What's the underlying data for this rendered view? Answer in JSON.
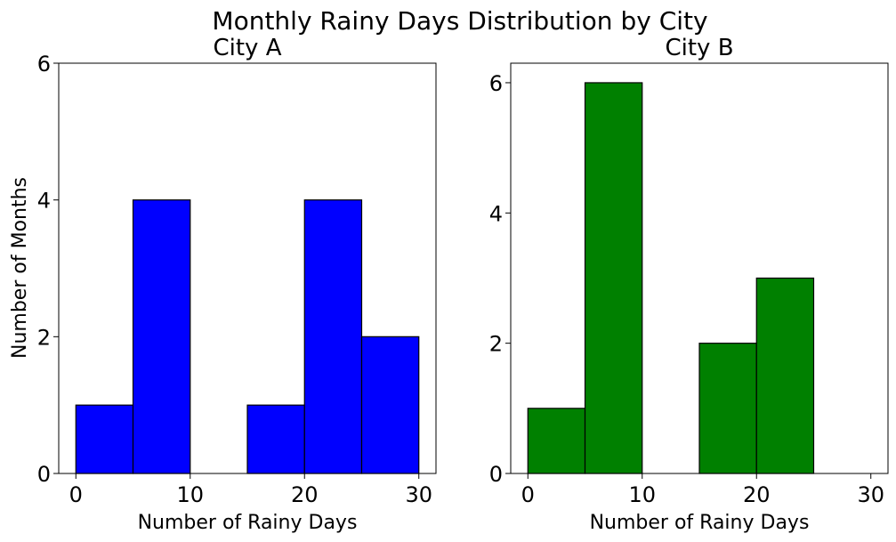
{
  "figure": {
    "title": "Monthly Rainy Days Distribution by City"
  },
  "chart_data": [
    {
      "type": "bar",
      "title": "City A",
      "xlabel": "Number of Rainy Days",
      "ylabel": "Number of Months",
      "bin_edges": [
        0,
        5,
        10,
        15,
        20,
        25,
        30
      ],
      "values": [
        1,
        4,
        0,
        1,
        4,
        2
      ],
      "bar_color": "#0000ff",
      "edge_color": "#000000",
      "xlim": [
        -1.5,
        31.5
      ],
      "ylim": [
        0,
        6
      ],
      "xticks": [
        0,
        10,
        20,
        30
      ],
      "yticks": [
        0,
        2,
        4,
        6
      ],
      "grid": false
    },
    {
      "type": "bar",
      "title": "City B",
      "xlabel": "Number of Rainy Days",
      "ylabel": "",
      "bin_edges": [
        0,
        5,
        10,
        15,
        20,
        25,
        30
      ],
      "values": [
        1,
        6,
        0,
        2,
        3,
        0
      ],
      "bar_color": "#008000",
      "edge_color": "#000000",
      "xlim": [
        -1.5,
        31.5
      ],
      "ylim": [
        0,
        6.3
      ],
      "xticks": [
        0,
        10,
        20,
        30
      ],
      "yticks": [
        0,
        2,
        4,
        6
      ],
      "grid": false
    }
  ]
}
